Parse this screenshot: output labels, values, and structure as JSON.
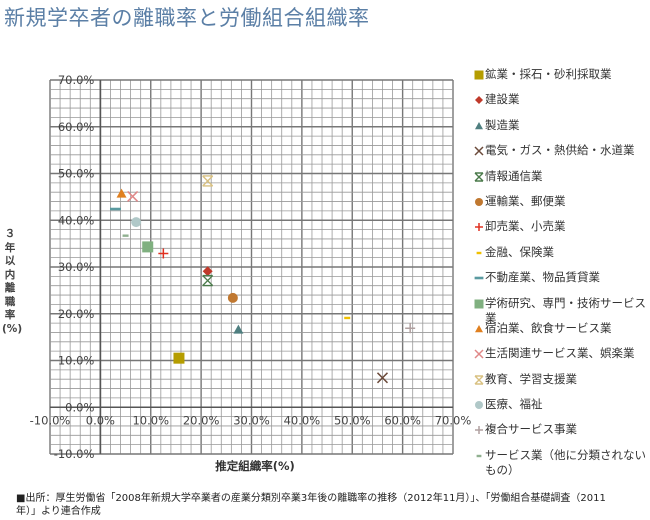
{
  "title": "新規学卒者の離職率と労働組合組織率",
  "footer": "■出所：厚生労働省「2008年新規大学卒業者の産業分類別卒業3年後の離職率の推移（2012年11月）」、「労働組合基礎調査（2011年）」より連合作成",
  "chart_data": {
    "type": "scatter",
    "title": "新規学卒者の離職率と労働組合組織率",
    "xlabel": "推定組織率(%)",
    "ylabel": "３年以内離職率(%)",
    "xlim": [
      -10,
      70
    ],
    "ylim": [
      -10,
      70
    ],
    "x_ticks": [
      "-10.0%",
      "0.0%",
      "10.0%",
      "20.0%",
      "30.0%",
      "40.0%",
      "50.0%",
      "60.0%",
      "70.0%"
    ],
    "y_ticks": [
      "-10.0%",
      "0.0%",
      "10.0%",
      "20.0%",
      "30.0%",
      "40.0%",
      "50.0%",
      "60.0%",
      "70.0%"
    ],
    "grid": true,
    "legend_position": "right",
    "series": [
      {
        "name": "鉱業・採石・砂利採取業",
        "x": 15.6,
        "y": 10.5,
        "marker": "square",
        "color": "#b59d00"
      },
      {
        "name": "建設業",
        "x": 21.3,
        "y": 29.1,
        "marker": "diamond",
        "color": "#c0392b"
      },
      {
        "name": "製造業",
        "x": 27.4,
        "y": 16.6,
        "marker": "triangle",
        "color": "#4f7f80"
      },
      {
        "name": "電気・ガス・熱供給・水道業",
        "x": 56.0,
        "y": 6.3,
        "marker": "x",
        "color": "#6b4a3a"
      },
      {
        "name": "情報通信業",
        "x": 21.3,
        "y": 27.1,
        "marker": "star",
        "color": "#4a7a4a"
      },
      {
        "name": "運輸業、郵便業",
        "x": 26.3,
        "y": 23.4,
        "marker": "circle",
        "color": "#c07830"
      },
      {
        "name": "卸売業、小売業",
        "x": 12.5,
        "y": 32.9,
        "marker": "plus",
        "color": "#e03020"
      },
      {
        "name": "金融、保険業",
        "x": 49.0,
        "y": 19.1,
        "marker": "dash",
        "color": "#f0c000"
      },
      {
        "name": "不動産業、物品賃貸業",
        "x": 3.0,
        "y": 42.4,
        "marker": "longdash",
        "color": "#5a9aa0"
      },
      {
        "name": "学術研究、専門・技術サービス業",
        "x": 9.4,
        "y": 34.3,
        "marker": "square",
        "color": "#80b080"
      },
      {
        "name": "宿泊業、飲食サービス業",
        "x": 4.2,
        "y": 45.7,
        "marker": "triangle",
        "color": "#e08020"
      },
      {
        "name": "生活関連サービス業、娯楽業",
        "x": 6.4,
        "y": 45.1,
        "marker": "x",
        "color": "#e08888"
      },
      {
        "name": "教育、学習支援業",
        "x": 21.3,
        "y": 48.4,
        "marker": "star",
        "color": "#d8c080"
      },
      {
        "name": "医療、福祉",
        "x": 7.1,
        "y": 39.6,
        "marker": "circle",
        "color": "#b0c8c8"
      },
      {
        "name": "複合サービス事業",
        "x": 61.5,
        "y": 16.9,
        "marker": "plus",
        "color": "#b0a0a0"
      },
      {
        "name": "サービス業（他に分類されないもの）",
        "x": 5.0,
        "y": 36.7,
        "marker": "dash",
        "color": "#90b090"
      }
    ]
  }
}
